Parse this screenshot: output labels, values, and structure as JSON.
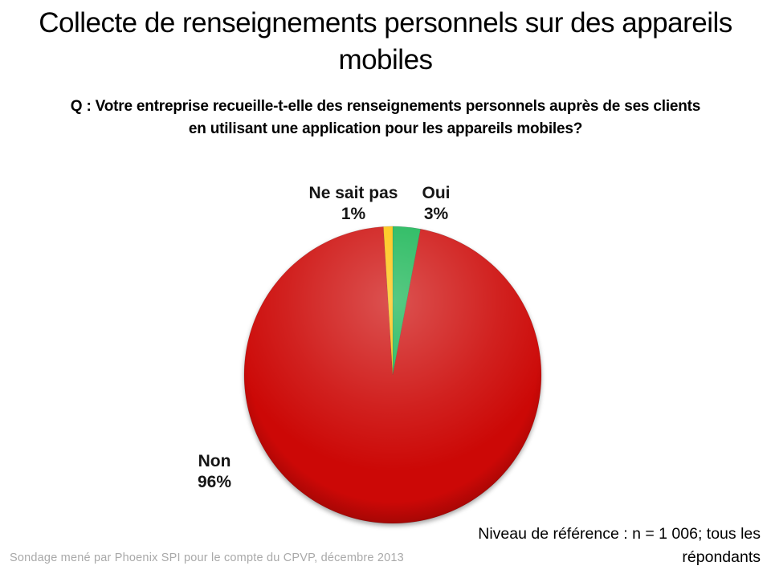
{
  "slide": {
    "title": "Collecte de renseignements personnels sur des appareils mobiles",
    "question_lines": [
      "Q : Votre entreprise recueille-t-elle des renseignements personnels auprès de ses clients",
      "en utilisant une application pour les appareils mobiles?"
    ],
    "base_note_lines": [
      "Niveau de référence : n = 1 006; tous les",
      "répondants"
    ],
    "source_note": "Sondage mené par Phoenix SPI pour le compte du CPVP, décembre 2013"
  },
  "chart_data": {
    "type": "pie",
    "categories": [
      "Oui",
      "Non",
      "Ne sait pas"
    ],
    "values": [
      3,
      96,
      1
    ],
    "pct_labels": [
      "3%",
      "96%",
      "1%"
    ],
    "colors": [
      "#0FB24D",
      "#CC0806",
      "#FFC000"
    ],
    "start_angle_deg": 0,
    "direction": "clockwise",
    "legend": "none",
    "labels_position": "outside",
    "background": "#FFFFFF"
  }
}
